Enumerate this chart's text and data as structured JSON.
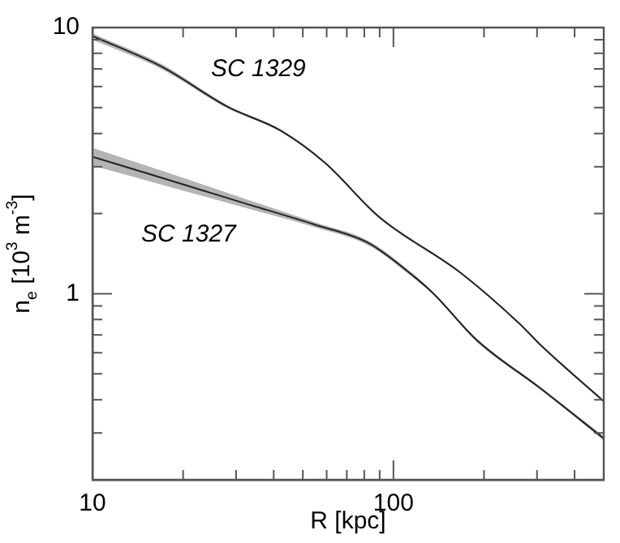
{
  "chart_data": {
    "type": "line",
    "xlabel": "R [kpc]",
    "ylabel": "n$_{e}$ [10$^{3}$ m$^{-3}$]",
    "log": "xy",
    "xlim": [
      10,
      500
    ],
    "ylim": [
      0.2,
      10
    ],
    "xticks": [
      10,
      {
        "value": 20,
        "label": null
      },
      {
        "value": 30,
        "label": null
      },
      {
        "value": 40,
        "label": null
      },
      {
        "value": 50,
        "label": null
      },
      {
        "value": 60,
        "label": null
      },
      {
        "value": 70,
        "label": null
      },
      {
        "value": 80,
        "label": null
      },
      {
        "value": 90,
        "label": null
      },
      100,
      {
        "value": 200,
        "label": null
      },
      {
        "value": 300,
        "label": null
      },
      {
        "value": 400,
        "label": null
      }
    ],
    "yticks": [
      {
        "value": 0.3,
        "label": null
      },
      {
        "value": 0.4,
        "label": null
      },
      {
        "value": 0.5,
        "label": null
      },
      {
        "value": 0.6,
        "label": null
      },
      {
        "value": 0.7,
        "label": null
      },
      {
        "value": 0.8,
        "label": null
      },
      {
        "value": 0.9,
        "label": null
      },
      1,
      {
        "value": 2,
        "label": null
      },
      {
        "value": 3,
        "label": null
      },
      {
        "value": 4,
        "label": null
      },
      {
        "value": 5,
        "label": null
      },
      {
        "value": 6,
        "label": null
      },
      {
        "value": 7,
        "label": null
      },
      {
        "value": 8,
        "label": null
      },
      {
        "value": 9,
        "label": null
      },
      10
    ],
    "grid": false,
    "marker": "none",
    "line_style": "solid",
    "series": [
      {
        "color": "#222222",
        "x": [
          10,
          17.1,
          28.1,
          42.4,
          59.3,
          89.3,
          167,
          263,
          309,
          500
        ],
        "values": [
          9.3,
          7.1,
          5.04,
          4.09,
          3.1,
          1.95,
          1.2,
          0.77,
          0.64,
          0.394
        ],
        "lower": [
          9.0,
          6.95,
          4.97,
          4.05,
          3.07,
          1.93,
          1.19,
          0.765,
          0.635,
          0.39
        ],
        "upper": [
          9.5,
          7.25,
          5.1,
          4.13,
          3.13,
          1.97,
          1.21,
          0.775,
          0.645,
          0.398
        ]
      },
      {
        "color": "#222222",
        "x": [
          10,
          17.1,
          31.9,
          54.6,
          82.6,
          115,
          136,
          189,
          309,
          500
        ],
        "values": [
          3.27,
          2.72,
          2.19,
          1.82,
          1.55,
          1.18,
          1.0,
          0.67,
          0.44,
          0.286
        ],
        "lower": [
          3.03,
          2.56,
          2.11,
          1.78,
          1.52,
          1.16,
          0.99,
          0.66,
          0.435,
          0.281
        ],
        "upper": [
          3.53,
          2.89,
          2.28,
          1.86,
          1.58,
          1.2,
          1.01,
          0.68,
          0.445,
          0.291
        ]
      }
    ],
    "annotations": [
      "SC 1329",
      "SC 1327"
    ]
  }
}
